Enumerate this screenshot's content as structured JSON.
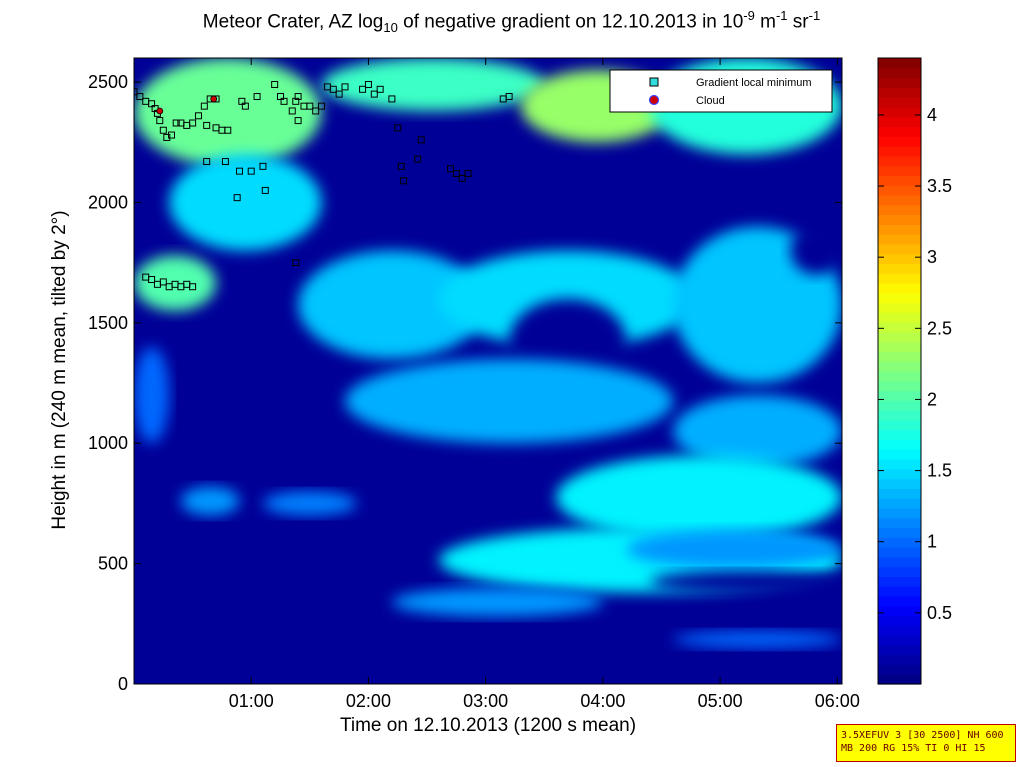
{
  "title": {
    "part1": "Meteor Crater, AZ log",
    "sub": "10",
    "part2": " of negative gradient on 12.10.2013 in 10",
    "sup1": "-9",
    "part3": " m",
    "sup2": "-1",
    "part4": " sr",
    "sup3": "-1"
  },
  "info_box": {
    "line1": "3.5XEFUV 3 [30 2500] NH 600",
    "line2": "MB 200 RG 15% TI 0 HI 15"
  },
  "chart_data": {
    "type": "heatmap",
    "xlabel": "Time on 12.10.2013 (1200 s mean)",
    "ylabel": "Height in m (240 m mean, tilted by 2°)",
    "xlim": [
      0.0,
      6.04
    ],
    "ylim": [
      0,
      2600
    ],
    "x_ticks": [
      {
        "value": 1,
        "label": "01:00"
      },
      {
        "value": 2,
        "label": "02:00"
      },
      {
        "value": 3,
        "label": "03:00"
      },
      {
        "value": 4,
        "label": "04:00"
      },
      {
        "value": 5,
        "label": "05:00"
      },
      {
        "value": 6,
        "label": "06:00"
      }
    ],
    "y_ticks": [
      {
        "value": 0,
        "label": "0"
      },
      {
        "value": 500,
        "label": "500"
      },
      {
        "value": 1000,
        "label": "1000"
      },
      {
        "value": 1500,
        "label": "1500"
      },
      {
        "value": 2000,
        "label": "2000"
      },
      {
        "value": 2500,
        "label": "2500"
      }
    ],
    "colorbar": {
      "range": [
        0,
        4.4
      ],
      "ticks": [
        {
          "value": 0.5,
          "label": "0.5"
        },
        {
          "value": 1,
          "label": "1"
        },
        {
          "value": 1.5,
          "label": "1.5"
        },
        {
          "value": 2,
          "label": "2"
        },
        {
          "value": 2.5,
          "label": "2.5"
        },
        {
          "value": 3,
          "label": "3"
        },
        {
          "value": 3.5,
          "label": "3.5"
        },
        {
          "value": 4,
          "label": "4"
        }
      ],
      "colormap": "jet"
    },
    "background_value": 0.1,
    "regions": [
      {
        "x": [
          0.0,
          1.6
        ],
        "y": [
          2150,
          2600
        ],
        "value": 2.1
      },
      {
        "x": [
          1.6,
          3.5
        ],
        "y": [
          2380,
          2600
        ],
        "value": 1.9
      },
      {
        "x": [
          3.3,
          4.6
        ],
        "y": [
          2250,
          2550
        ],
        "value": 2.3
      },
      {
        "x": [
          4.4,
          6.04
        ],
        "y": [
          2200,
          2600
        ],
        "value": 1.8
      },
      {
        "x": [
          0.0,
          0.7
        ],
        "y": [
          1550,
          1780
        ],
        "value": 2.0
      },
      {
        "x": [
          0.3,
          1.6
        ],
        "y": [
          1800,
          2200
        ],
        "value": 1.5
      },
      {
        "x": [
          1.4,
          3.0
        ],
        "y": [
          1350,
          1800
        ],
        "value": 1.4
      },
      {
        "x": [
          2.6,
          4.8
        ],
        "y": [
          1400,
          1800
        ],
        "value": 1.5
      },
      {
        "x": [
          3.2,
          4.2
        ],
        "y": [
          1250,
          1600
        ],
        "value": 0.1
      },
      {
        "x": [
          4.6,
          6.04
        ],
        "y": [
          1250,
          1900
        ],
        "value": 1.4
      },
      {
        "x": [
          5.6,
          6.04
        ],
        "y": [
          1700,
          1900
        ],
        "value": 0.1
      },
      {
        "x": [
          1.8,
          4.6
        ],
        "y": [
          1000,
          1350
        ],
        "value": 1.3
      },
      {
        "x": [
          4.6,
          6.04
        ],
        "y": [
          900,
          1200
        ],
        "value": 1.3
      },
      {
        "x": [
          3.6,
          6.04
        ],
        "y": [
          600,
          950
        ],
        "value": 1.6
      },
      {
        "x": [
          2.6,
          6.04
        ],
        "y": [
          380,
          650
        ],
        "value": 1.6
      },
      {
        "x": [
          4.2,
          6.04
        ],
        "y": [
          480,
          640
        ],
        "value": 1.2
      },
      {
        "x": [
          4.4,
          6.04
        ],
        "y": [
          380,
          470
        ],
        "value": 0.1
      },
      {
        "x": [
          2.2,
          4.0
        ],
        "y": [
          280,
          400
        ],
        "value": 1.2
      },
      {
        "x": [
          4.6,
          6.04
        ],
        "y": [
          150,
          220
        ],
        "value": 1.0
      },
      {
        "x": [
          0.4,
          0.9
        ],
        "y": [
          700,
          820
        ],
        "value": 1.2
      },
      {
        "x": [
          1.1,
          1.9
        ],
        "y": [
          700,
          800
        ],
        "value": 1.1
      },
      {
        "x": [
          0.0,
          0.3
        ],
        "y": [
          1000,
          1400
        ],
        "value": 1.0
      }
    ],
    "series": [
      {
        "name": "Gradient local minimum",
        "marker": "square",
        "color": "#33dddd",
        "points": [
          [
            0.0,
            2460
          ],
          [
            0.05,
            2440
          ],
          [
            0.1,
            2420
          ],
          [
            0.15,
            2410
          ],
          [
            0.18,
            2390
          ],
          [
            0.2,
            2370
          ],
          [
            0.22,
            2340
          ],
          [
            0.25,
            2300
          ],
          [
            0.28,
            2270
          ],
          [
            0.32,
            2280
          ],
          [
            0.36,
            2330
          ],
          [
            0.4,
            2330
          ],
          [
            0.45,
            2320
          ],
          [
            0.5,
            2330
          ],
          [
            0.55,
            2360
          ],
          [
            0.6,
            2400
          ],
          [
            0.65,
            2430
          ],
          [
            0.7,
            2430
          ],
          [
            0.62,
            2320
          ],
          [
            0.7,
            2310
          ],
          [
            0.75,
            2300
          ],
          [
            0.8,
            2300
          ],
          [
            0.62,
            2170
          ],
          [
            0.78,
            2170
          ],
          [
            0.88,
            2020
          ],
          [
            0.92,
            2420
          ],
          [
            0.95,
            2400
          ],
          [
            0.9,
            2130
          ],
          [
            1.0,
            2130
          ],
          [
            1.05,
            2440
          ],
          [
            1.1,
            2150
          ],
          [
            1.12,
            2050
          ],
          [
            1.2,
            2490
          ],
          [
            1.25,
            2440
          ],
          [
            1.28,
            2420
          ],
          [
            1.35,
            2380
          ],
          [
            1.38,
            2420
          ],
          [
            1.4,
            2440
          ],
          [
            1.45,
            2400
          ],
          [
            1.5,
            2400
          ],
          [
            1.55,
            2380
          ],
          [
            1.6,
            2400
          ],
          [
            1.38,
            1750
          ],
          [
            1.4,
            2340
          ],
          [
            1.65,
            2480
          ],
          [
            1.7,
            2470
          ],
          [
            1.75,
            2450
          ],
          [
            1.8,
            2480
          ],
          [
            1.95,
            2470
          ],
          [
            2.0,
            2490
          ],
          [
            2.05,
            2450
          ],
          [
            2.1,
            2470
          ],
          [
            2.2,
            2430
          ],
          [
            2.25,
            2310
          ],
          [
            2.28,
            2150
          ],
          [
            2.3,
            2090
          ],
          [
            2.42,
            2180
          ],
          [
            2.45,
            2260
          ],
          [
            2.7,
            2140
          ],
          [
            2.75,
            2120
          ],
          [
            2.8,
            2100
          ],
          [
            2.85,
            2120
          ],
          [
            3.15,
            2430
          ],
          [
            3.2,
            2440
          ],
          [
            0.1,
            1690
          ],
          [
            0.15,
            1680
          ],
          [
            0.2,
            1660
          ],
          [
            0.25,
            1670
          ],
          [
            0.3,
            1650
          ],
          [
            0.35,
            1660
          ],
          [
            0.4,
            1650
          ],
          [
            0.45,
            1660
          ],
          [
            0.5,
            1650
          ]
        ]
      },
      {
        "name": "Cloud",
        "marker": "circle",
        "color": "#cc0000",
        "points": [
          [
            0.22,
            2380
          ],
          [
            0.68,
            2430
          ]
        ]
      }
    ]
  }
}
